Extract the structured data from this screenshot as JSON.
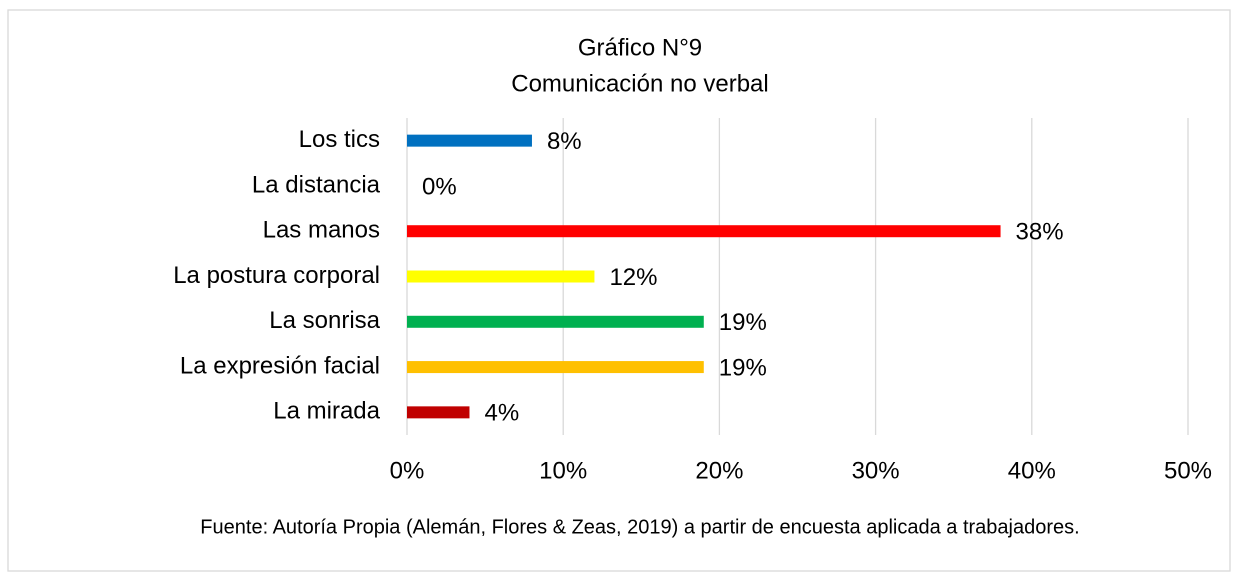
{
  "chart_data": {
    "type": "bar",
    "orientation": "horizontal",
    "title": "Gráfico N°9",
    "subtitle": "Comunicación no verbal",
    "categories": [
      "Los tics",
      "La distancia",
      "Las manos",
      "La postura corporal",
      "La sonrisa",
      "La expresión facial",
      "La mirada"
    ],
    "values": [
      8,
      0,
      38,
      12,
      19,
      19,
      4
    ],
    "value_labels": [
      "8%",
      "0%",
      "38%",
      "12%",
      "19%",
      "19%",
      "4%"
    ],
    "colors": [
      "#0070c0",
      "#7f7f7f",
      "#ff0000",
      "#ffff00",
      "#00b050",
      "#ffc000",
      "#c00000"
    ],
    "xlim": [
      0,
      50
    ],
    "xticks": [
      {
        "value": 0,
        "label": "0%"
      },
      {
        "value": 10,
        "label": "10%"
      },
      {
        "value": 20,
        "label": "20%"
      },
      {
        "value": 30,
        "label": "30%"
      },
      {
        "value": 40,
        "label": "40%"
      },
      {
        "value": 50,
        "label": "50%"
      }
    ],
    "grid": true,
    "source": "Fuente: Autoría Propia (Alemán, Flores & Zeas, 2019) a partir de encuesta aplicada a trabajadores."
  }
}
